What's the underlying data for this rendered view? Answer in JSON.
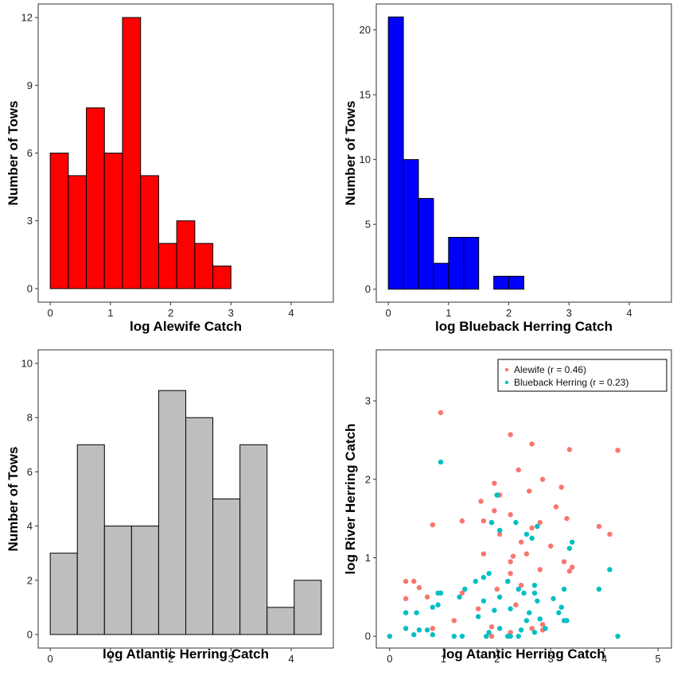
{
  "chart_data": [
    {
      "type": "histogram",
      "title": "",
      "xlabel": "log Alewife Catch",
      "ylabel": "Number of Tows",
      "fill": "#ff0000",
      "bin_start": 0,
      "bin_width": 0.3,
      "counts": [
        6,
        5,
        8,
        6,
        12,
        5,
        2,
        3,
        2,
        1,
        0,
        0,
        0,
        0,
        0
      ],
      "xlim": [
        -0.2,
        4.7
      ],
      "ylim": [
        -0.6,
        12.6
      ],
      "xticks": [
        0,
        1,
        2,
        3,
        4
      ],
      "xtick_labels": [
        "0",
        "1",
        "2",
        "3",
        "4"
      ],
      "yticks": [
        0,
        3,
        6,
        9,
        12
      ],
      "ytick_labels": [
        "0",
        "3",
        "6",
        "9",
        "12"
      ]
    },
    {
      "type": "histogram",
      "title": "",
      "xlabel": "log Blueback Herring Catch",
      "ylabel": "Number of Tows",
      "fill": "#0000ff",
      "bin_start": 0,
      "bin_width": 0.25,
      "counts": [
        21,
        10,
        7,
        2,
        4,
        4,
        0,
        1,
        1,
        0,
        0,
        0,
        0,
        0,
        0,
        0,
        0,
        0
      ],
      "xlim": [
        -0.2,
        4.7
      ],
      "ylim": [
        -1.0,
        22.0
      ],
      "xticks": [
        0,
        1,
        2,
        3,
        4
      ],
      "xtick_labels": [
        "0",
        "1",
        "2",
        "3",
        "4"
      ],
      "yticks": [
        0,
        5,
        10,
        15,
        20
      ],
      "ytick_labels": [
        "0",
        "5",
        "10",
        "15",
        "20"
      ]
    },
    {
      "type": "histogram",
      "title": "",
      "xlabel": "log Atlantic Herring Catch",
      "ylabel": "Number of Tows",
      "fill": "#bebebe",
      "bin_start": 0,
      "bin_width": 0.45,
      "counts": [
        3,
        7,
        4,
        4,
        9,
        8,
        5,
        7,
        1,
        2
      ],
      "xlim": [
        -0.2,
        4.7
      ],
      "ylim": [
        -0.5,
        10.5
      ],
      "xticks": [
        0,
        1,
        2,
        3,
        4
      ],
      "xtick_labels": [
        "0",
        "1",
        "2",
        "3",
        "4"
      ],
      "yticks": [
        0,
        2,
        4,
        6,
        8,
        10
      ],
      "ytick_labels": [
        "0",
        "2",
        "4",
        "6",
        "8",
        "10"
      ]
    },
    {
      "type": "scatter",
      "title": "",
      "xlabel": "log Atantic Herring Catch",
      "ylabel": "log River Herring Catch",
      "xlim": [
        -0.25,
        5.25
      ],
      "ylim": [
        -0.15,
        3.65
      ],
      "xticks": [
        0,
        1,
        2,
        3,
        4,
        5
      ],
      "xtick_labels": [
        "0",
        "1",
        "2",
        "3",
        "4",
        "5"
      ],
      "yticks": [
        0,
        1,
        2,
        3
      ],
      "ytick_labels": [
        "0",
        "1",
        "2",
        "3"
      ],
      "legend_position": "top-right",
      "series": [
        {
          "name": "Alewife (r = 0.46)",
          "color": "#f8766d",
          "points": [
            [
              0.95,
              2.85
            ],
            [
              2.25,
              2.57
            ],
            [
              2.65,
              2.45
            ],
            [
              3.35,
              2.38
            ],
            [
              4.25,
              2.37
            ],
            [
              2.4,
              2.12
            ],
            [
              2.85,
              2.0
            ],
            [
              1.95,
              1.95
            ],
            [
              3.2,
              1.9
            ],
            [
              2.6,
              1.85
            ],
            [
              2.05,
              1.8
            ],
            [
              1.7,
              1.72
            ],
            [
              3.1,
              1.65
            ],
            [
              1.95,
              1.6
            ],
            [
              2.25,
              1.55
            ],
            [
              3.3,
              1.5
            ],
            [
              1.35,
              1.47
            ],
            [
              1.75,
              1.47
            ],
            [
              1.9,
              1.45
            ],
            [
              2.8,
              1.45
            ],
            [
              0.8,
              1.42
            ],
            [
              2.75,
              1.4
            ],
            [
              2.65,
              1.38
            ],
            [
              3.9,
              1.4
            ],
            [
              4.1,
              1.3
            ],
            [
              2.05,
              1.3
            ],
            [
              2.45,
              1.2
            ],
            [
              3.0,
              1.15
            ],
            [
              2.55,
              1.05
            ],
            [
              1.75,
              1.05
            ],
            [
              2.3,
              1.02
            ],
            [
              2.25,
              0.95
            ],
            [
              3.25,
              0.95
            ],
            [
              3.4,
              0.88
            ],
            [
              2.8,
              0.85
            ],
            [
              3.35,
              0.83
            ],
            [
              2.25,
              0.8
            ],
            [
              2.2,
              0.7
            ],
            [
              0.3,
              0.7
            ],
            [
              0.45,
              0.7
            ],
            [
              0.55,
              0.62
            ],
            [
              2.45,
              0.65
            ],
            [
              2.0,
              0.6
            ],
            [
              0.95,
              0.55
            ],
            [
              1.35,
              0.55
            ],
            [
              0.7,
              0.5
            ],
            [
              0.3,
              0.48
            ],
            [
              1.65,
              0.35
            ],
            [
              2.35,
              0.4
            ],
            [
              1.2,
              0.2
            ],
            [
              2.85,
              0.15
            ],
            [
              1.9,
              0.12
            ],
            [
              2.65,
              0.1
            ],
            [
              0.8,
              0.1
            ],
            [
              2.85,
              0.08
            ],
            [
              2.25,
              0.05
            ],
            [
              1.9,
              0.0
            ]
          ]
        },
        {
          "name": "Blueback Herring (r = 0.23)",
          "color": "#00bfc4",
          "points": [
            [
              0.95,
              2.22
            ],
            [
              2.0,
              1.8
            ],
            [
              2.0,
              1.8
            ],
            [
              2.35,
              1.45
            ],
            [
              1.9,
              1.45
            ],
            [
              2.75,
              1.4
            ],
            [
              2.05,
              1.35
            ],
            [
              2.55,
              1.3
            ],
            [
              2.65,
              1.25
            ],
            [
              3.4,
              1.2
            ],
            [
              3.35,
              1.12
            ],
            [
              4.1,
              0.85
            ],
            [
              1.85,
              0.8
            ],
            [
              1.75,
              0.75
            ],
            [
              2.2,
              0.7
            ],
            [
              1.6,
              0.7
            ],
            [
              3.9,
              0.6
            ],
            [
              2.7,
              0.65
            ],
            [
              2.4,
              0.6
            ],
            [
              1.4,
              0.6
            ],
            [
              3.25,
              0.6
            ],
            [
              0.95,
              0.55
            ],
            [
              0.9,
              0.55
            ],
            [
              2.5,
              0.55
            ],
            [
              2.7,
              0.55
            ],
            [
              1.3,
              0.5
            ],
            [
              2.05,
              0.5
            ],
            [
              3.05,
              0.48
            ],
            [
              2.75,
              0.45
            ],
            [
              1.75,
              0.45
            ],
            [
              0.9,
              0.4
            ],
            [
              0.8,
              0.37
            ],
            [
              3.2,
              0.37
            ],
            [
              2.25,
              0.35
            ],
            [
              1.95,
              0.33
            ],
            [
              2.6,
              0.3
            ],
            [
              0.3,
              0.3
            ],
            [
              0.5,
              0.3
            ],
            [
              3.15,
              0.3
            ],
            [
              1.65,
              0.25
            ],
            [
              2.8,
              0.22
            ],
            [
              3.25,
              0.2
            ],
            [
              3.3,
              0.2
            ],
            [
              2.55,
              0.2
            ],
            [
              2.9,
              0.1
            ],
            [
              0.3,
              0.1
            ],
            [
              0.55,
              0.08
            ],
            [
              0.7,
              0.08
            ],
            [
              2.05,
              0.1
            ],
            [
              2.45,
              0.08
            ],
            [
              2.7,
              0.05
            ],
            [
              1.85,
              0.05
            ],
            [
              0.0,
              0.0
            ],
            [
              0.45,
              0.02
            ],
            [
              0.8,
              0.02
            ],
            [
              1.2,
              0.0
            ],
            [
              1.35,
              0.0
            ],
            [
              1.8,
              0.0
            ],
            [
              2.2,
              0.0
            ],
            [
              2.25,
              0.0
            ],
            [
              2.4,
              0.0
            ],
            [
              4.25,
              0.0
            ]
          ]
        }
      ]
    }
  ]
}
